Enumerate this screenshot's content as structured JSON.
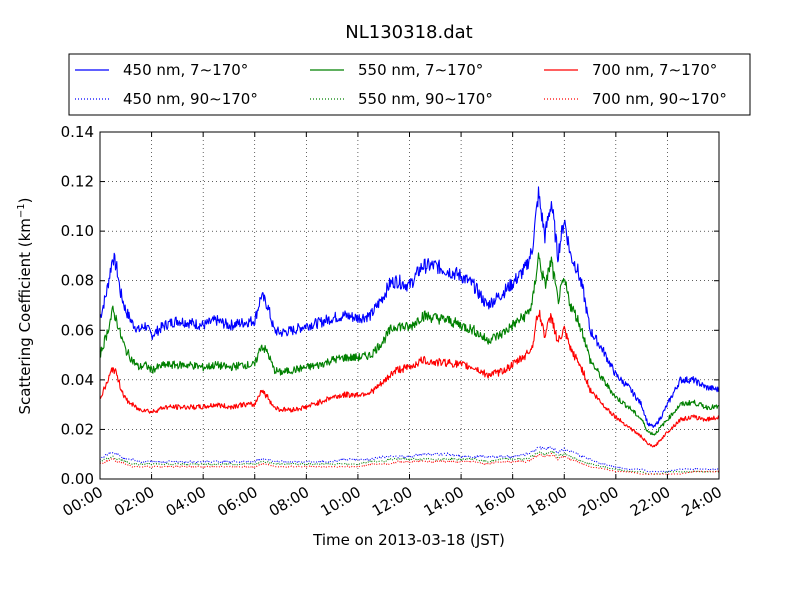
{
  "chart_data": {
    "type": "line",
    "title": "NL130318.dat",
    "xlabel": "Time on 2013-03-18 (JST)",
    "ylabel": "Scattering Coefficient (km",
    "ylabel_unit_exp": "−1",
    "ylabel_close": ")",
    "xlim": [
      "2013-03-18 00:00",
      "2013-03-19 00:00"
    ],
    "xlim_hours": [
      0,
      24
    ],
    "ylim": [
      0,
      0.14
    ],
    "xticks": [
      "00:00",
      "02:00",
      "04:00",
      "06:00",
      "08:00",
      "10:00",
      "12:00",
      "14:00",
      "16:00",
      "18:00",
      "20:00",
      "22:00",
      "24:00"
    ],
    "xtick_hours": [
      0,
      2,
      4,
      6,
      8,
      10,
      12,
      14,
      16,
      18,
      20,
      22,
      24
    ],
    "yticks": [
      "0.00",
      "0.02",
      "0.04",
      "0.06",
      "0.08",
      "0.10",
      "0.12",
      "0.14"
    ],
    "ytick_values": [
      0,
      0.02,
      0.04,
      0.06,
      0.08,
      0.1,
      0.12,
      0.14
    ],
    "grid": true,
    "legend_position": "top",
    "x_hours": [
      0,
      0.25,
      0.5,
      0.65,
      0.8,
      1,
      1.25,
      1.5,
      1.75,
      2,
      2.5,
      3,
      3.5,
      4,
      4.5,
      5,
      5.5,
      6,
      6.25,
      6.5,
      6.75,
      7,
      7.5,
      8,
      8.5,
      9,
      9.5,
      10,
      10.5,
      11,
      11.25,
      11.5,
      12,
      12.5,
      13,
      13.5,
      14,
      14.5,
      15,
      15.5,
      16,
      16.5,
      16.75,
      17,
      17.25,
      17.5,
      17.75,
      18,
      18.25,
      18.5,
      18.75,
      19,
      19.5,
      20,
      20.5,
      21,
      21.25,
      21.5,
      21.75,
      22,
      22.5,
      23,
      23.5,
      24
    ],
    "series": [
      {
        "name": "450 nm, 7∼170°",
        "color": "#0000ff",
        "style": "solid",
        "values": [
          0.065,
          0.075,
          0.09,
          0.085,
          0.075,
          0.068,
          0.063,
          0.06,
          0.062,
          0.058,
          0.062,
          0.064,
          0.063,
          0.062,
          0.064,
          0.062,
          0.063,
          0.064,
          0.074,
          0.07,
          0.06,
          0.059,
          0.06,
          0.062,
          0.063,
          0.065,
          0.066,
          0.065,
          0.066,
          0.074,
          0.079,
          0.08,
          0.078,
          0.086,
          0.086,
          0.084,
          0.082,
          0.078,
          0.07,
          0.074,
          0.079,
          0.085,
          0.092,
          0.115,
          0.098,
          0.112,
          0.09,
          0.105,
          0.09,
          0.085,
          0.075,
          0.06,
          0.052,
          0.042,
          0.037,
          0.03,
          0.022,
          0.021,
          0.025,
          0.03,
          0.04,
          0.04,
          0.037,
          0.036
        ]
      },
      {
        "name": "450 nm, 90∼170°",
        "color": "#0000ff",
        "style": "dotted",
        "values": [
          0.008,
          0.01,
          0.011,
          0.01,
          0.009,
          0.008,
          0.008,
          0.007,
          0.007,
          0.007,
          0.007,
          0.007,
          0.007,
          0.007,
          0.007,
          0.007,
          0.007,
          0.007,
          0.008,
          0.008,
          0.007,
          0.007,
          0.007,
          0.007,
          0.007,
          0.007,
          0.008,
          0.008,
          0.008,
          0.009,
          0.009,
          0.009,
          0.009,
          0.01,
          0.01,
          0.01,
          0.009,
          0.009,
          0.009,
          0.009,
          0.009,
          0.01,
          0.011,
          0.013,
          0.012,
          0.013,
          0.011,
          0.012,
          0.011,
          0.01,
          0.009,
          0.008,
          0.006,
          0.005,
          0.004,
          0.004,
          0.003,
          0.003,
          0.003,
          0.003,
          0.004,
          0.004,
          0.004,
          0.004
        ]
      },
      {
        "name": "550 nm, 7∼170°",
        "color": "#008000",
        "style": "solid",
        "values": [
          0.05,
          0.058,
          0.068,
          0.064,
          0.058,
          0.052,
          0.048,
          0.045,
          0.046,
          0.044,
          0.046,
          0.046,
          0.046,
          0.045,
          0.046,
          0.045,
          0.046,
          0.046,
          0.054,
          0.051,
          0.044,
          0.043,
          0.044,
          0.045,
          0.046,
          0.048,
          0.049,
          0.049,
          0.05,
          0.056,
          0.06,
          0.062,
          0.061,
          0.066,
          0.065,
          0.064,
          0.062,
          0.06,
          0.056,
          0.058,
          0.062,
          0.066,
          0.07,
          0.09,
          0.078,
          0.088,
          0.072,
          0.08,
          0.07,
          0.065,
          0.058,
          0.048,
          0.04,
          0.033,
          0.029,
          0.024,
          0.019,
          0.018,
          0.021,
          0.024,
          0.03,
          0.031,
          0.029,
          0.029
        ]
      },
      {
        "name": "550 nm, 90∼170°",
        "color": "#008000",
        "style": "dotted",
        "values": [
          0.007,
          0.008,
          0.009,
          0.008,
          0.008,
          0.007,
          0.006,
          0.006,
          0.006,
          0.006,
          0.006,
          0.006,
          0.006,
          0.006,
          0.006,
          0.006,
          0.006,
          0.006,
          0.007,
          0.007,
          0.006,
          0.006,
          0.006,
          0.006,
          0.006,
          0.006,
          0.006,
          0.006,
          0.007,
          0.007,
          0.008,
          0.008,
          0.008,
          0.008,
          0.008,
          0.008,
          0.008,
          0.008,
          0.007,
          0.008,
          0.008,
          0.008,
          0.009,
          0.011,
          0.01,
          0.011,
          0.009,
          0.01,
          0.009,
          0.008,
          0.007,
          0.006,
          0.005,
          0.004,
          0.003,
          0.003,
          0.002,
          0.002,
          0.002,
          0.003,
          0.003,
          0.003,
          0.003,
          0.003
        ]
      },
      {
        "name": "700 nm, 7∼170°",
        "color": "#ff0000",
        "style": "solid",
        "values": [
          0.033,
          0.038,
          0.045,
          0.042,
          0.037,
          0.032,
          0.03,
          0.028,
          0.028,
          0.027,
          0.029,
          0.029,
          0.029,
          0.029,
          0.03,
          0.029,
          0.03,
          0.03,
          0.036,
          0.033,
          0.029,
          0.028,
          0.028,
          0.029,
          0.031,
          0.033,
          0.034,
          0.034,
          0.035,
          0.039,
          0.042,
          0.044,
          0.045,
          0.048,
          0.047,
          0.047,
          0.046,
          0.045,
          0.042,
          0.043,
          0.046,
          0.05,
          0.053,
          0.068,
          0.058,
          0.066,
          0.055,
          0.06,
          0.052,
          0.048,
          0.043,
          0.036,
          0.03,
          0.025,
          0.021,
          0.017,
          0.014,
          0.013,
          0.016,
          0.019,
          0.024,
          0.025,
          0.024,
          0.025
        ]
      },
      {
        "name": "700 nm, 90∼170°",
        "color": "#ff0000",
        "style": "dotted",
        "values": [
          0.006,
          0.007,
          0.008,
          0.007,
          0.007,
          0.006,
          0.005,
          0.005,
          0.005,
          0.005,
          0.005,
          0.005,
          0.005,
          0.005,
          0.005,
          0.005,
          0.005,
          0.005,
          0.006,
          0.006,
          0.005,
          0.005,
          0.005,
          0.005,
          0.005,
          0.005,
          0.005,
          0.005,
          0.006,
          0.006,
          0.006,
          0.007,
          0.007,
          0.007,
          0.007,
          0.007,
          0.007,
          0.007,
          0.006,
          0.007,
          0.007,
          0.007,
          0.008,
          0.01,
          0.009,
          0.01,
          0.008,
          0.009,
          0.008,
          0.007,
          0.006,
          0.005,
          0.004,
          0.003,
          0.003,
          0.002,
          0.002,
          0.002,
          0.002,
          0.002,
          0.002,
          0.003,
          0.003,
          0.003
        ]
      }
    ]
  }
}
